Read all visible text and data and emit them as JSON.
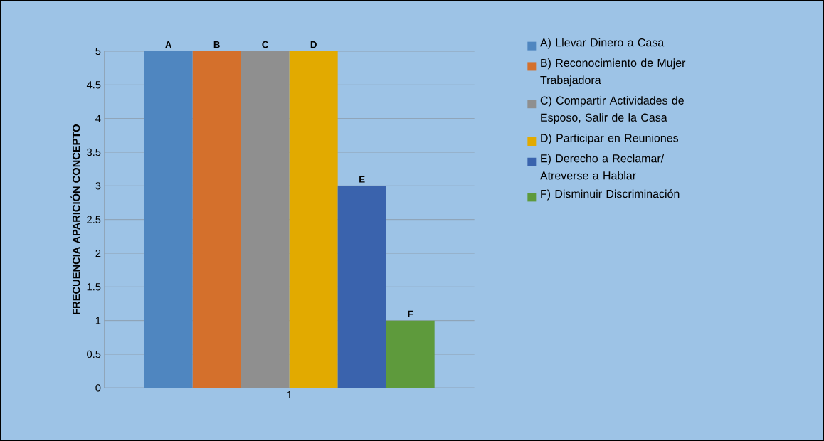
{
  "chart_data": {
    "type": "bar",
    "ylabel": "FRECUENCIA APARICIÓN CONCEPTO",
    "categories": [
      "1"
    ],
    "series": [
      {
        "name": "A) Llevar Dinero a Casa",
        "color": "#4f86c0",
        "values": [
          5
        ],
        "value_labels": [
          "A"
        ]
      },
      {
        "name": "B) Reconocimiento de Mujer Trabajadora",
        "color": "#d4702c",
        "values": [
          5
        ],
        "value_labels": [
          "B"
        ]
      },
      {
        "name": "C) Compartir Actividades de Esposo, Salir de la Casa",
        "color": "#8f8f8f",
        "values": [
          5
        ],
        "value_labels": [
          "C"
        ]
      },
      {
        "name": "D) Participar en Reuniones",
        "color": "#e2aa00",
        "values": [
          5
        ],
        "value_labels": [
          "D"
        ]
      },
      {
        "name": "E) Derecho a Reclamar/ Atreverse a Hablar",
        "color": "#3a63ad",
        "values": [
          3
        ],
        "value_labels": [
          "E"
        ]
      },
      {
        "name": "F) Disminuir Discriminación",
        "color": "#5e9a3c",
        "values": [
          1
        ],
        "value_labels": [
          "F"
        ]
      }
    ],
    "ylim": [
      0,
      5
    ],
    "yticks": [
      0,
      0.5,
      1,
      1.5,
      2,
      2.5,
      3,
      3.5,
      4,
      4.5,
      5
    ],
    "grid": "y",
    "legend": "right"
  }
}
